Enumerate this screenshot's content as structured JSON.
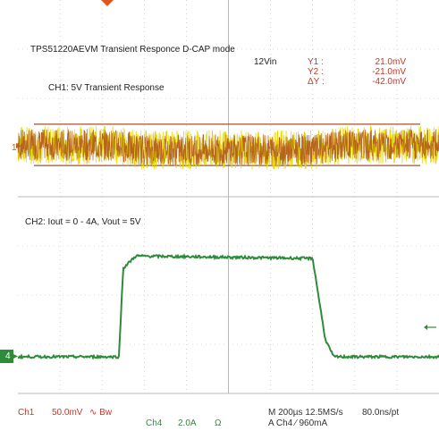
{
  "annotations": {
    "title": "TPS51220AEVM Transient Responce D-CAP mode",
    "vin": "12Vin",
    "ch1_label": "CH1: 5V Transient Response",
    "ch2_label": "CH2: Iout = 0 - 4A, Vout = 5V"
  },
  "cursors": {
    "y1_label": "Y1 :",
    "y1_value": "21.0mV",
    "y2_label": "Y2 :",
    "y2_value": "-21.0mV",
    "dy_label": "ΔY :",
    "dy_value": "-42.0mV"
  },
  "markers": {
    "ch1": "1",
    "ch4": "4"
  },
  "status": {
    "ch1_name": "Ch1",
    "ch1_scale": "50.0mV",
    "ch1_coupling": "∿ Bw",
    "ch4_name": "Ch4",
    "ch4_scale": "2.0A",
    "ch4_coupling": "Ω",
    "timebase": "M 200µs 12.5MS/s",
    "sample": "80.0ns/pt",
    "trigger": "A  Ch4  ⁄  960mA"
  },
  "colors": {
    "grid": "#b8b8b8",
    "ch1_trace": "#b5651d",
    "ch1_noise": "#e6d300",
    "cursor": "#a0522d",
    "ch4_trace": "#2e8b3a",
    "trigger_marker": "#e2551f"
  },
  "chart_data": {
    "type": "line",
    "grid": true,
    "divisions": {
      "x": 10,
      "y": 8
    },
    "series": [
      {
        "name": "Ch1",
        "units": "mV",
        "x_divisions": [
          0,
          2.3,
          2.9,
          7.1,
          7.7,
          10
        ],
        "values": [
          0,
          0,
          -5,
          -5,
          0,
          0
        ],
        "noise_pp": 40
      },
      {
        "name": "Ch4",
        "units": "A",
        "x_divisions": [
          0,
          2.4,
          2.5,
          2.8,
          7.0,
          7.3,
          7.5,
          10
        ],
        "values": [
          0,
          0,
          3.6,
          4.1,
          4.0,
          0.7,
          0,
          0
        ]
      }
    ],
    "cursors": {
      "y1_mV": 21.0,
      "y2_mV": -21.0
    }
  }
}
